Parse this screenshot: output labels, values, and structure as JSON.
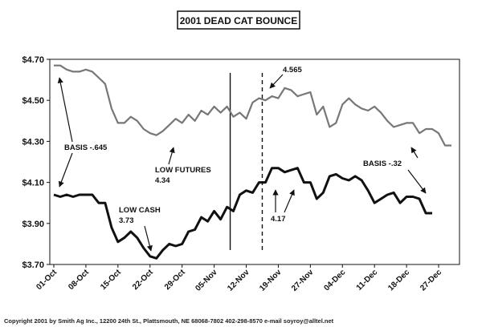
{
  "chart_data": {
    "type": "line",
    "title": "2001 DEAD CAT BOUNCE",
    "xlabel": "",
    "ylabel": "",
    "ylim": [
      3.7,
      4.7
    ],
    "y_ticks": [
      "$4.70",
      "$4.50",
      "$4.30",
      "$4.10",
      "$3.90",
      "$3.70"
    ],
    "y_tick_values": [
      4.7,
      4.5,
      4.3,
      4.1,
      3.9,
      3.7
    ],
    "x_ticks": [
      "01-Oct",
      "08-Oct",
      "15-Oct",
      "22-Oct",
      "29-Oct",
      "05-Nov",
      "12-Nov",
      "19-Nov",
      "27-Nov",
      "04-Dec",
      "11-Dec",
      "18-Dec",
      "27-Dec"
    ],
    "x_tick_index": [
      0,
      5,
      10,
      15,
      20,
      25,
      30,
      35,
      40,
      45,
      50,
      55,
      60
    ],
    "grid": false,
    "series": [
      {
        "key": "futures",
        "color": "#777777",
        "values": [
          4.67,
          4.67,
          4.65,
          4.64,
          4.64,
          4.65,
          4.64,
          4.61,
          4.58,
          4.46,
          4.39,
          4.39,
          4.42,
          4.4,
          4.36,
          4.34,
          4.33,
          4.35,
          4.38,
          4.41,
          4.39,
          4.43,
          4.4,
          4.45,
          4.43,
          4.47,
          4.44,
          4.47,
          4.42,
          4.44,
          4.41,
          4.49,
          4.51,
          4.5,
          4.52,
          4.51,
          4.56,
          4.55,
          4.52,
          4.53,
          4.54,
          4.43,
          4.47,
          4.37,
          4.39,
          4.48,
          4.51,
          4.48,
          4.46,
          4.45,
          4.47,
          4.44,
          4.4,
          4.37,
          4.38,
          4.39,
          4.39,
          4.34,
          4.36,
          4.36,
          4.34,
          4.28,
          4.28
        ]
      },
      {
        "key": "cash",
        "color": "#111111",
        "values": [
          4.04,
          4.03,
          4.04,
          4.03,
          4.04,
          4.04,
          4.04,
          4.0,
          4.0,
          3.88,
          3.81,
          3.83,
          3.86,
          3.83,
          3.78,
          3.74,
          3.73,
          3.77,
          3.8,
          3.79,
          3.8,
          3.86,
          3.87,
          3.93,
          3.91,
          3.96,
          3.92,
          3.98,
          3.96,
          4.04,
          4.06,
          4.05,
          4.1,
          4.1,
          4.17,
          4.17,
          4.15,
          4.16,
          4.17,
          4.1,
          4.1,
          4.02,
          4.05,
          4.13,
          4.14,
          4.12,
          4.11,
          4.13,
          4.11,
          4.06,
          4.0,
          4.02,
          4.04,
          4.05,
          4.0,
          4.03,
          4.03,
          4.02,
          3.95,
          3.95
        ]
      }
    ],
    "annotations": {
      "basis_early": "BASIS -.645",
      "low_futures": "LOW FUTURES",
      "low_futures_value": "4.34",
      "low_cash": "LOW CASH",
      "low_cash_value": "3.73",
      "peak_futures": "4.565",
      "peak_cash": "4.17",
      "basis_late": "BASIS -.32"
    },
    "reference_lines": [
      {
        "style": "solid",
        "index": 27.5
      },
      {
        "style": "dashed",
        "index": 32.5
      }
    ]
  },
  "footer": {
    "copyright": "Copyright 2001 by Smith Ag Inc., 12200 24th St., Plattsmouth, NE 68068-7802 402-298-8570 e-mail soyroy@alltel.net"
  }
}
